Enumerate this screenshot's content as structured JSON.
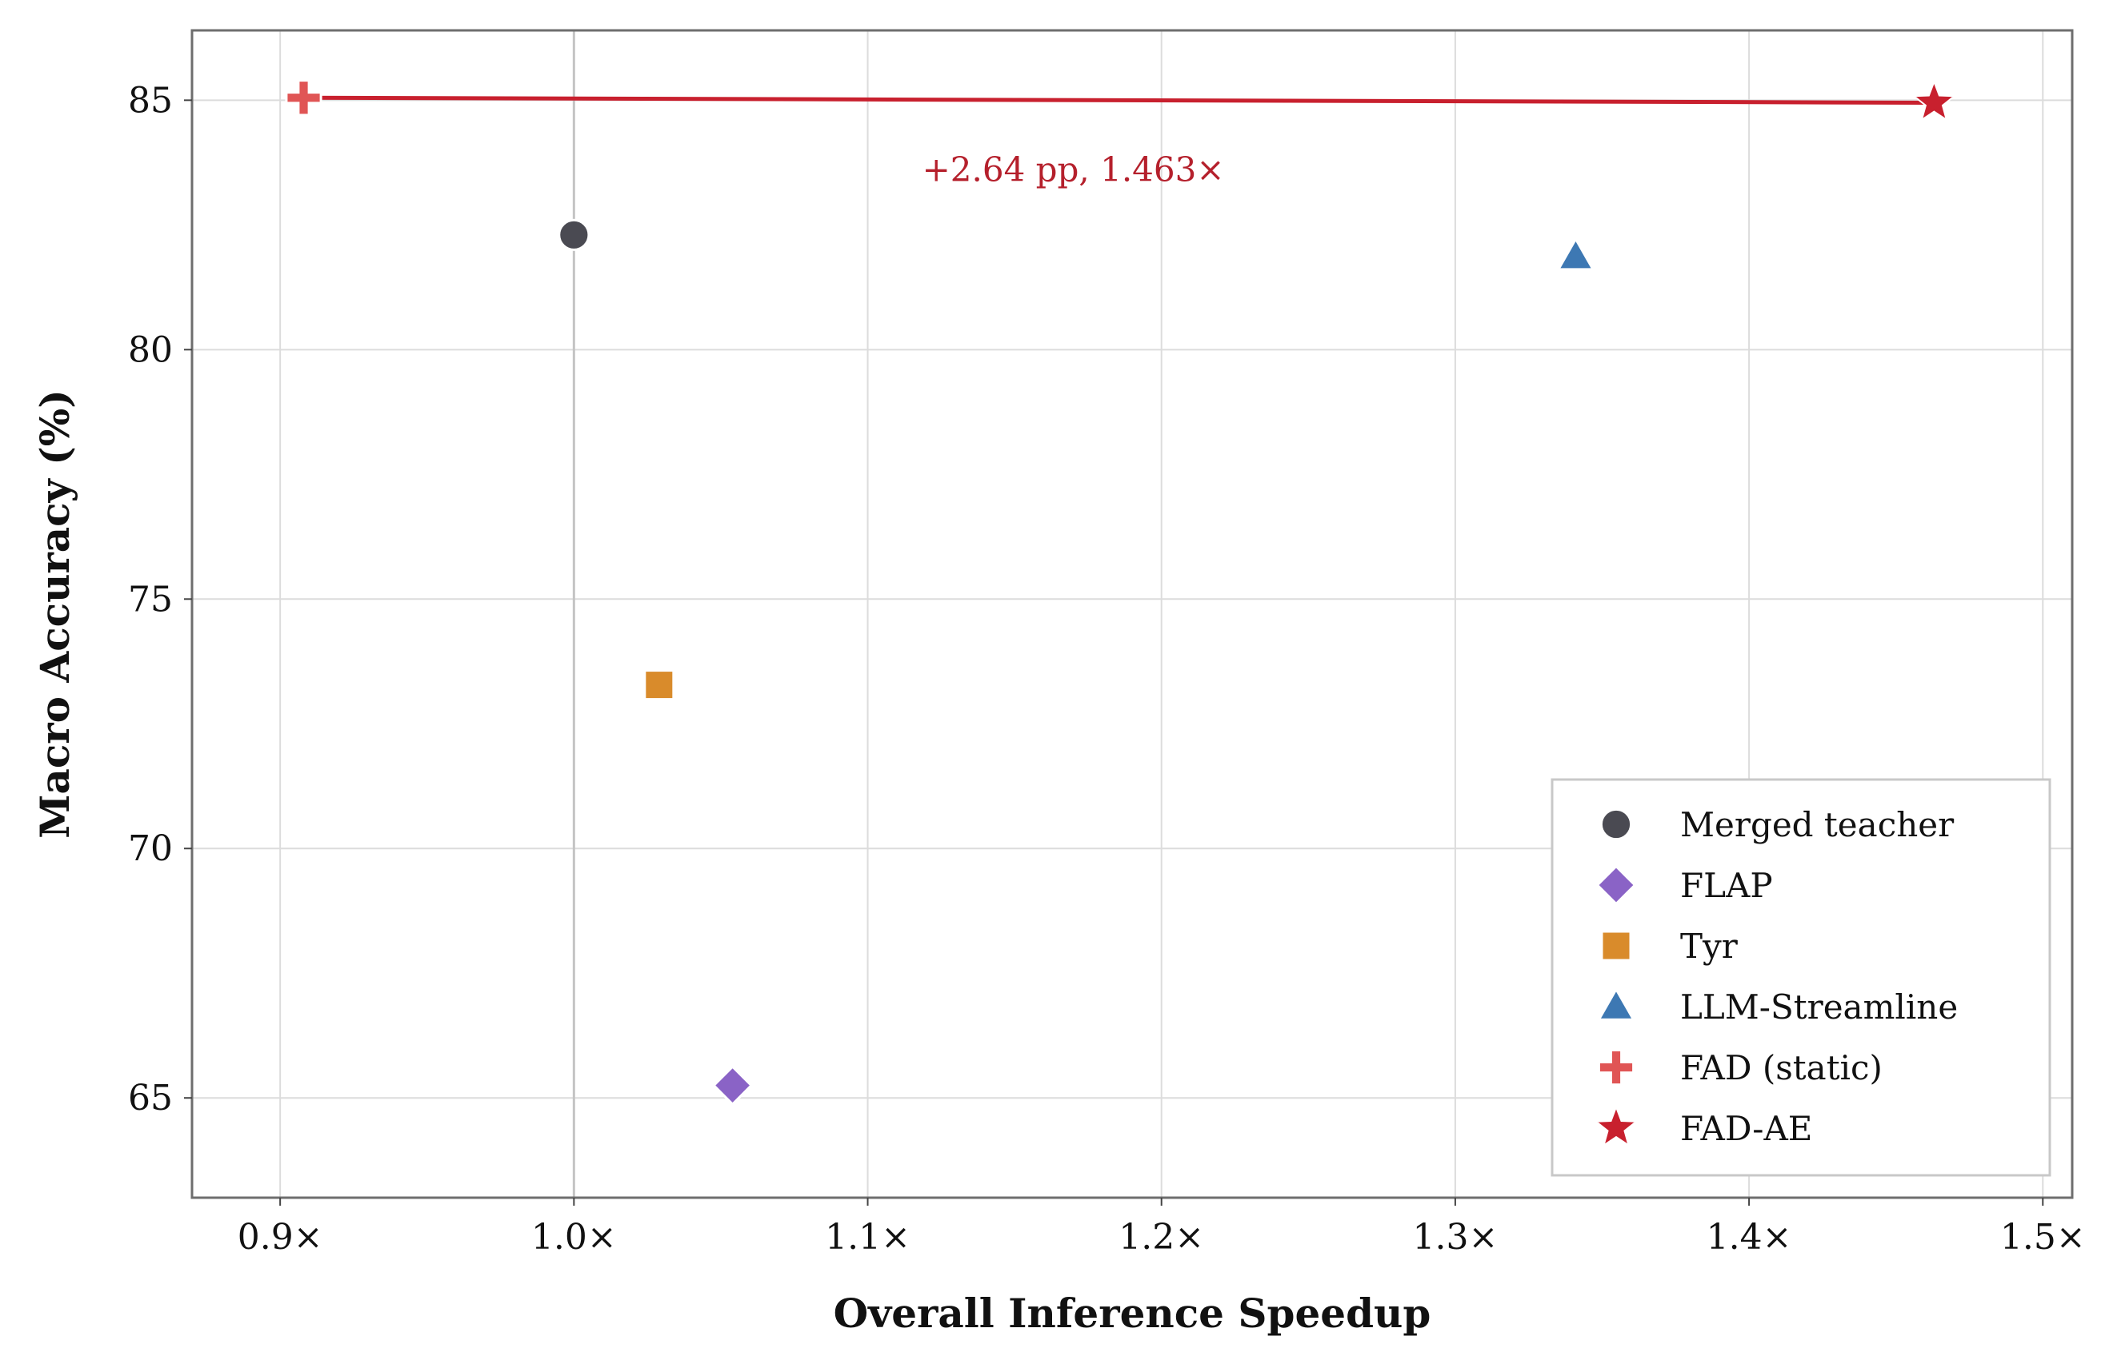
{
  "chart_data": {
    "type": "scatter",
    "xlabel": "Overall Inference Speedup",
    "ylabel": "Macro Accuracy (%)",
    "xlim": [
      0.87,
      1.51
    ],
    "ylim": [
      63.0,
      86.4
    ],
    "xticks": [
      0.9,
      1.0,
      1.1,
      1.2,
      1.3,
      1.4,
      1.5
    ],
    "xtick_labels": [
      "0.9×",
      "1.0×",
      "1.1×",
      "1.2×",
      "1.3×",
      "1.4×",
      "1.5×"
    ],
    "yticks": [
      65,
      70,
      75,
      80,
      85
    ],
    "ytick_labels": [
      "65",
      "70",
      "75",
      "80",
      "85"
    ],
    "grid": true,
    "reference_line": {
      "x": 1.0
    },
    "legend_position": "lower-right",
    "series": [
      {
        "name": "Merged teacher",
        "marker": "circle",
        "color": "#4a4a52",
        "x": 1.0,
        "y": 82.3
      },
      {
        "name": "FLAP",
        "marker": "diamond",
        "color": "#8a63c6",
        "x": 1.054,
        "y": 65.25
      },
      {
        "name": "Tyr",
        "marker": "square",
        "color": "#d98b2b",
        "x": 1.029,
        "y": 73.28
      },
      {
        "name": "LLM-Streamline",
        "marker": "triangle",
        "color": "#3d78b3",
        "x": 1.341,
        "y": 81.87
      },
      {
        "name": "FAD (static)",
        "marker": "plus",
        "color": "#e05555",
        "x": 0.908,
        "y": 85.05
      },
      {
        "name": "FAD-AE",
        "marker": "star",
        "color": "#c8202e",
        "x": 1.463,
        "y": 84.95
      }
    ],
    "connector": {
      "from": "FAD (static)",
      "to": "FAD-AE",
      "color": "#c8202e"
    },
    "annotations": [
      {
        "text": "+2.64 pp, 1.463×",
        "x": 1.17,
        "y": 83.6,
        "color": "#b5202c"
      }
    ]
  }
}
